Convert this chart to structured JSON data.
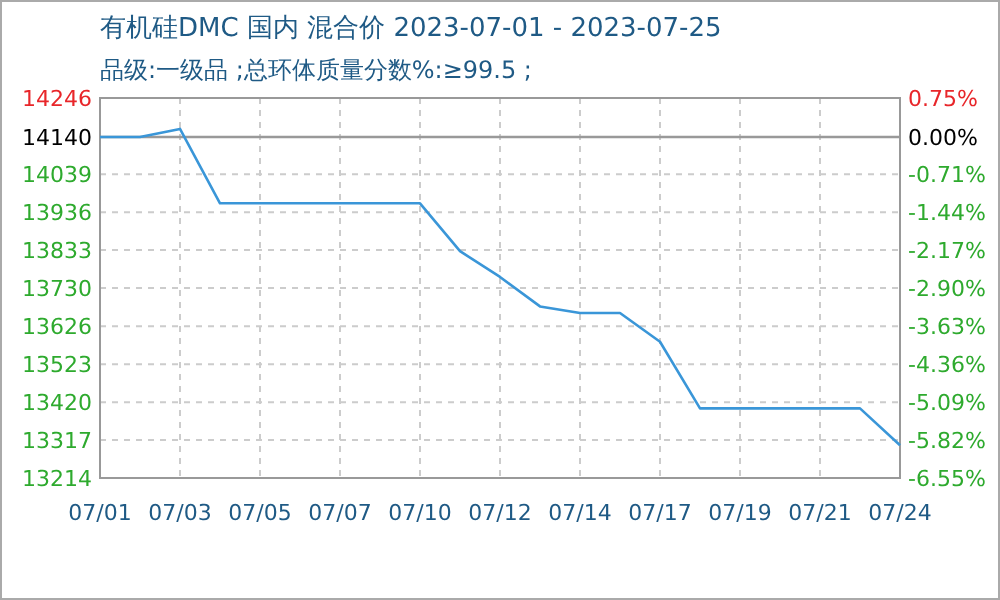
{
  "chart_data": {
    "type": "line",
    "title": "有机硅DMC 国内 混合价 2023-07-01 - 2023-07-25",
    "subtitle": "品级:一级品 ;总环体质量分数%:≥99.5 ;",
    "categories": [
      "07/01",
      null,
      "07/03",
      null,
      "07/05",
      null,
      "07/07",
      null,
      "07/10",
      null,
      "07/12",
      null,
      "07/14",
      null,
      "07/17",
      null,
      "07/19",
      null,
      "07/21",
      null,
      "07/24"
    ],
    "series": [
      {
        "color": "#3a96d8",
        "values": [
          14140,
          14140,
          14162,
          13960,
          13960,
          13960,
          13960,
          13960,
          13960,
          13830,
          13760,
          13680,
          13662,
          13662,
          13584,
          13403,
          13403,
          13403,
          13403,
          13403,
          13303
        ]
      }
    ],
    "ylim": [
      13214,
      14246
    ],
    "yticks": [
      14246,
      14140,
      14039,
      13936,
      13833,
      13730,
      13626,
      13523,
      13420,
      13317,
      13214
    ],
    "y2lim": [
      -6.55,
      0.75
    ],
    "y2ticks": [
      {
        "value": 0.75,
        "label": "0.75%"
      },
      {
        "value": 0,
        "label": "0.00%"
      },
      {
        "value": -0.71,
        "label": "-0.71%"
      },
      {
        "value": -1.44,
        "label": "-1.44%"
      },
      {
        "value": -2.17,
        "label": "-2.17%"
      },
      {
        "value": -2.9,
        "label": "-2.90%"
      },
      {
        "value": -3.63,
        "label": "-3.63%"
      },
      {
        "value": -4.36,
        "label": "-4.36%"
      },
      {
        "value": -5.09,
        "label": "-5.09%"
      },
      {
        "value": -5.82,
        "label": "-5.82%"
      },
      {
        "value": -6.55,
        "label": "-6.55%"
      }
    ],
    "ref_lines": [
      {
        "axis": "y",
        "value": 14140,
        "color": "#999999"
      }
    ],
    "grid": true,
    "marker": "none",
    "line_style": "solid"
  }
}
